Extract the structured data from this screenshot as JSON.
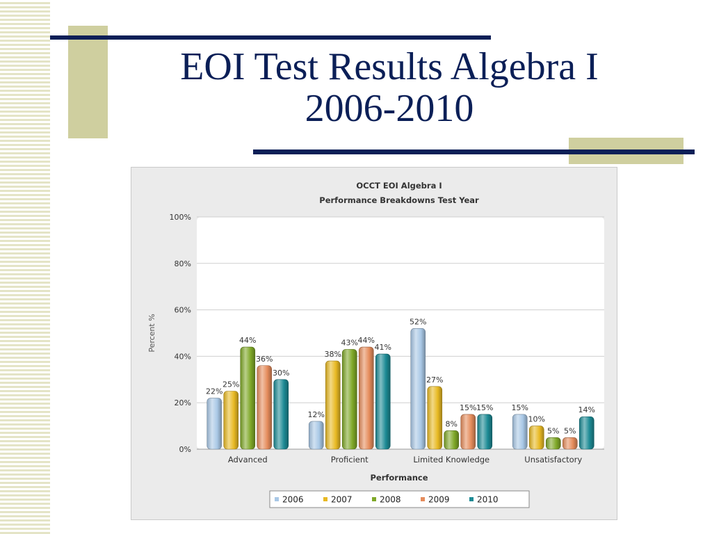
{
  "slide": {
    "title_line1": "EOI Test Results Algebra I",
    "title_line2": "2006-2010"
  },
  "colors": {
    "title": "#0b1f57",
    "accent": "#cfcf9f",
    "stripe": "#e4e4c6"
  },
  "chart_data": {
    "type": "bar",
    "title": "OCCT EOI Algebra I",
    "subtitle": "Performance Breakdowns Test Year",
    "xlabel": "Performance",
    "ylabel": "Percent %",
    "ylim": [
      0,
      100
    ],
    "yticks": [
      "0%",
      "20%",
      "40%",
      "60%",
      "80%",
      "100%"
    ],
    "grid": true,
    "legend_position": "bottom",
    "categories": [
      "Advanced",
      "Proficient",
      "Limited Knowledge",
      "Unsatisfactory"
    ],
    "series": [
      {
        "name": "2006",
        "color": "#a9c8e6",
        "values": [
          22,
          12,
          52,
          15
        ],
        "labels": [
          "22%",
          "12%",
          "52%",
          "15%"
        ]
      },
      {
        "name": "2007",
        "color": "#e8b923",
        "values": [
          25,
          38,
          27,
          10
        ],
        "labels": [
          "25%",
          "38%",
          "27%",
          "10%"
        ]
      },
      {
        "name": "2008",
        "color": "#7fa828",
        "values": [
          44,
          43,
          8,
          5
        ],
        "labels": [
          "44%",
          "43%",
          "8%",
          "5%"
        ]
      },
      {
        "name": "2009",
        "color": "#e58c5c",
        "values": [
          36,
          44,
          15,
          5
        ],
        "labels": [
          "36%",
          "44%",
          "15%",
          "5%"
        ]
      },
      {
        "name": "2010",
        "color": "#1c8a94",
        "values": [
          30,
          41,
          15,
          14
        ],
        "labels": [
          "30%",
          "41%",
          "15%",
          "14%"
        ]
      }
    ]
  }
}
